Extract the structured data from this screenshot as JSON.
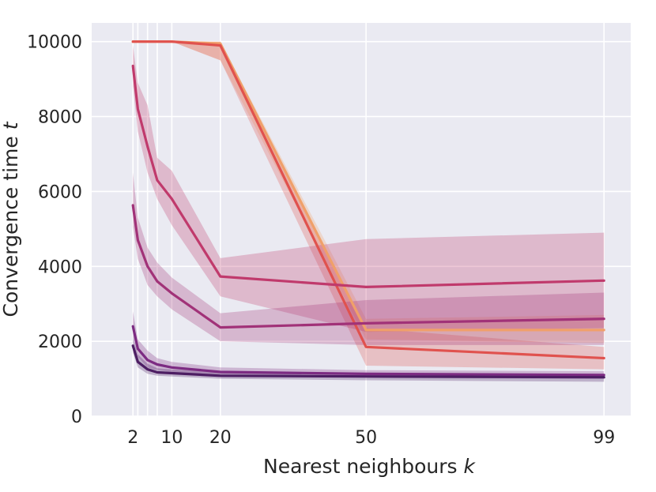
{
  "chart_data": {
    "type": "line",
    "xlabel": "Nearest neighbours",
    "xlabel_var": "k",
    "ylabel": "Convergence time",
    "ylabel_var": "t",
    "x": [
      2,
      3,
      5,
      7,
      10,
      20,
      50,
      99
    ],
    "x_tick_labels": [
      "2",
      "10",
      "20",
      "50",
      "99"
    ],
    "x_tick_values": [
      2,
      10,
      20,
      50,
      99
    ],
    "x_grid_values": [
      2,
      3,
      5,
      7,
      10,
      20,
      50,
      99
    ],
    "xlim": [
      -6.5,
      104.5
    ],
    "ylim": [
      0,
      10500
    ],
    "y_ticks": [
      0,
      2000,
      4000,
      6000,
      8000,
      10000
    ],
    "y_tick_labels": [
      "0",
      "2000",
      "4000",
      "6000",
      "8000",
      "10000"
    ],
    "grid": true,
    "background": "#eaeaf2",
    "series": [
      {
        "color": "#f0a06a",
        "values": [
          10000,
          10000,
          10000,
          10000,
          10000,
          9950,
          2300,
          2300
        ],
        "band_lower": [
          10000,
          10000,
          10000,
          10000,
          10000,
          9500,
          2050,
          1950
        ],
        "band_upper": [
          10000,
          10000,
          10000,
          10000,
          10000,
          10000,
          2600,
          2700
        ]
      },
      {
        "color": "#e0524e",
        "values": [
          10000,
          10000,
          10000,
          10000,
          10000,
          9900,
          1850,
          1550
        ],
        "band_lower": [
          10000,
          10000,
          10000,
          10000,
          10000,
          9500,
          1350,
          1250
        ],
        "band_upper": [
          10000,
          10000,
          10000,
          10000,
          10000,
          10000,
          2350,
          1850
        ]
      },
      {
        "color": "#c03a6c",
        "values": [
          9350,
          8200,
          7200,
          6300,
          5800,
          3730,
          3450,
          3620
        ],
        "band_lower": [
          8800,
          7600,
          6500,
          5800,
          5100,
          3200,
          2250,
          2350
        ],
        "band_upper": [
          9900,
          8900,
          8300,
          6900,
          6550,
          4220,
          4730,
          4900
        ]
      },
      {
        "color": "#a13278",
        "values": [
          5630,
          4700,
          4000,
          3600,
          3280,
          2370,
          2480,
          2600
        ],
        "band_lower": [
          5050,
          4200,
          3500,
          3200,
          2850,
          2000,
          1900,
          1900
        ],
        "band_upper": [
          6500,
          5300,
          4500,
          4100,
          3700,
          2750,
          3100,
          3300
        ]
      },
      {
        "color": "#7c2b82",
        "values": [
          2400,
          1800,
          1500,
          1380,
          1300,
          1180,
          1130,
          1100
        ],
        "band_lower": [
          2100,
          1580,
          1300,
          1230,
          1180,
          1080,
          1030,
          1000
        ],
        "band_upper": [
          2800,
          2050,
          1750,
          1550,
          1450,
          1300,
          1230,
          1200
        ]
      },
      {
        "color": "#4d1e63",
        "values": [
          1880,
          1450,
          1250,
          1170,
          1150,
          1080,
          1060,
          1040
        ],
        "band_lower": [
          1700,
          1300,
          1130,
          1080,
          1060,
          1000,
          960,
          920
        ],
        "band_upper": [
          2100,
          1650,
          1400,
          1280,
          1250,
          1180,
          1150,
          1130
        ]
      }
    ]
  }
}
